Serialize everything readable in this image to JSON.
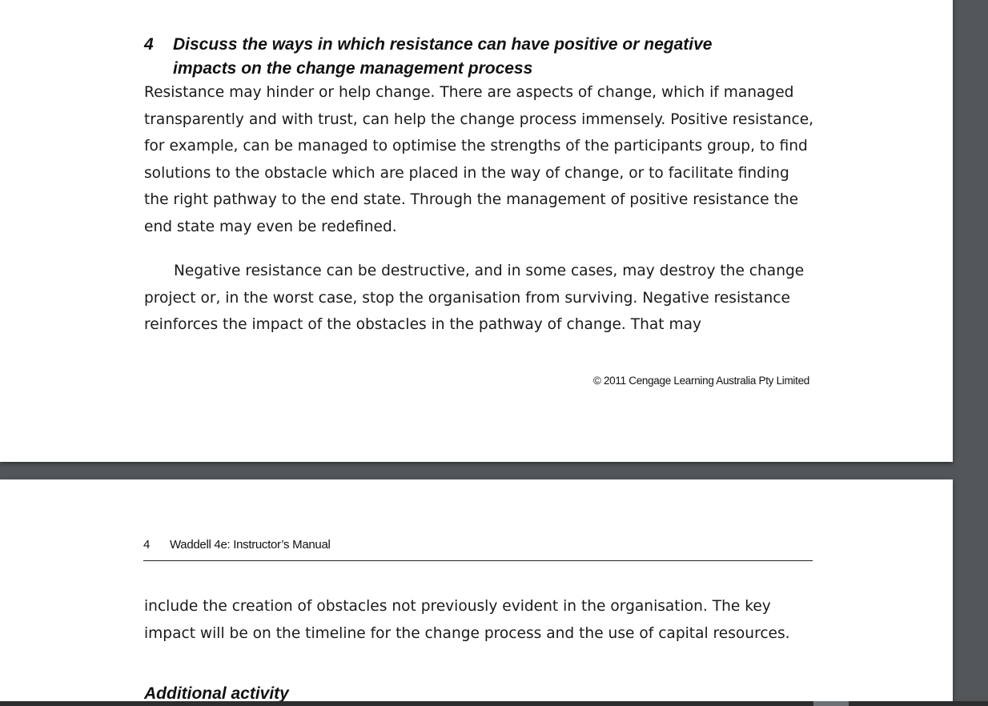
{
  "page_top": {
    "question": {
      "number": "4",
      "text_line1": "Discuss the ways in which resistance can have positive or negative",
      "text_line2": "impacts on the change management process"
    },
    "paragraph_1": "Resistance may hinder or help change. There are aspects of change, which if managed transparently and with trust, can help the change process immensely. Positive resistance, for example, can be managed to optimise the strengths of the participants group, to find solutions to the obstacle which are placed in the way of change, or to facilitate finding the right pathway to the end state. Through the management of positive resistance the end state may even be redefined.",
    "paragraph_2": "Negative resistance can be destructive, and in some cases, may destroy the change project or, in the worst case, stop the organisation from surviving. Negative resistance reinforces the impact of the obstacles in the pathway of change. That may",
    "footer_copyright": "© 2011 Cengage Learning Australia Pty Limited"
  },
  "page_bottom": {
    "header_page_number": "4",
    "header_title": "Waddell 4e: Instructor’s Manual",
    "paragraph_continued": "include the creation of obstacles not previously evident in the organisation. The key impact will be on the timeline for the change process and the use of capital resources.",
    "section_heading": "Additional activity"
  },
  "colors": {
    "viewer_background": "#525659",
    "page_background": "#ffffff",
    "text": "#1a1a1a"
  }
}
